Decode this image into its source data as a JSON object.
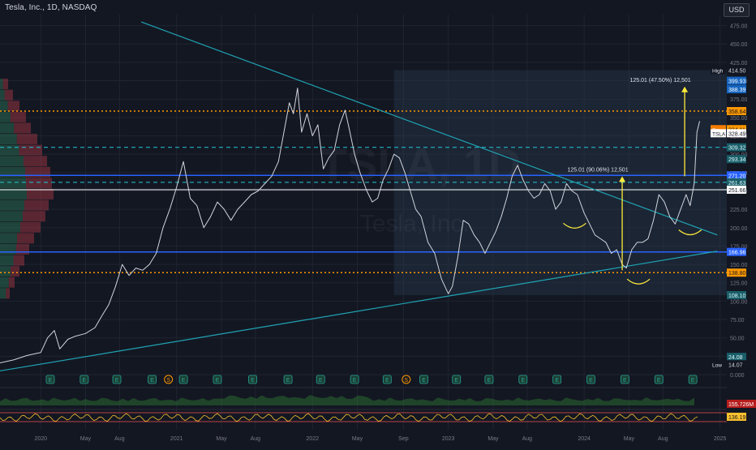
{
  "header": {
    "title": "Tesla, Inc., 1D, NASDAQ",
    "currency": "USD",
    "watermark_symbol": "TSLA, 1D",
    "watermark_name": "Tesla, Inc."
  },
  "colors": {
    "background": "#131722",
    "price_line": "#d1d4dc",
    "trendline": "#1fa4b4",
    "support_blue": "#2962ff",
    "orange_dotted": "#ff9800",
    "cyan_dashed": "#26c6da",
    "white_line": "#ffffff",
    "arrow_yellow": "#ffeb3b",
    "grid": "#1f2430",
    "axis_text": "#787b86"
  },
  "chart_data": {
    "type": "line",
    "title": "Tesla, Inc., 1D, NASDAQ",
    "ylim": [
      0,
      490
    ],
    "grid": true,
    "y_ticks": [
      0.0,
      25.0,
      50.0,
      75.0,
      100.0,
      125.0,
      150.0,
      175.0,
      200.0,
      225.0,
      250.0,
      275.0,
      300.0,
      325.0,
      350.0,
      375.0,
      400.0,
      425.0,
      450.0,
      475.0
    ],
    "y_tick_labels": [
      "0.000",
      "25.00",
      "50.00",
      "75.00",
      "100.00",
      "125.00",
      "150.00",
      "175.00",
      "200.00",
      "225.00",
      "250.00",
      "275.00",
      "300.00",
      "325.00",
      "350.00",
      "375.00",
      "400.00",
      "425.00",
      "450.00",
      "475.00"
    ],
    "x_ticks": [
      {
        "t": 2020.0,
        "label": "2020"
      },
      {
        "t": 2020.33,
        "label": "May"
      },
      {
        "t": 2020.58,
        "label": "Aug"
      },
      {
        "t": 2021.0,
        "label": "2021"
      },
      {
        "t": 2021.33,
        "label": "May"
      },
      {
        "t": 2021.58,
        "label": "Aug"
      },
      {
        "t": 2022.0,
        "label": "2022"
      },
      {
        "t": 2022.33,
        "label": "May"
      },
      {
        "t": 2022.67,
        "label": "Sep"
      },
      {
        "t": 2023.0,
        "label": "2023"
      },
      {
        "t": 2023.33,
        "label": "May"
      },
      {
        "t": 2023.58,
        "label": "Aug"
      },
      {
        "t": 2024.0,
        "label": "2024"
      },
      {
        "t": 2024.33,
        "label": "May"
      },
      {
        "t": 2024.58,
        "label": "Aug"
      },
      {
        "t": 2025.0,
        "label": "2025"
      }
    ],
    "series": [
      {
        "t": [
          2019.7,
          2019.8,
          2019.9,
          2020.0,
          2020.05,
          2020.1,
          2020.14,
          2020.2,
          2020.25,
          2020.33,
          2020.4,
          2020.45,
          2020.5,
          2020.55,
          2020.6,
          2020.65,
          2020.7,
          2020.75,
          2020.8,
          2020.85,
          2020.9,
          2020.95,
          2021.0,
          2021.05,
          2021.1,
          2021.15,
          2021.2,
          2021.25,
          2021.3,
          2021.35,
          2021.4,
          2021.45,
          2021.5,
          2021.55,
          2021.6,
          2021.65,
          2021.7,
          2021.75,
          2021.8,
          2021.83,
          2021.86,
          2021.89,
          2021.92,
          2021.96,
          2022.0,
          2022.04,
          2022.08,
          2022.12,
          2022.16,
          2022.2,
          2022.24,
          2022.27,
          2022.31,
          2022.35,
          2022.4,
          2022.44,
          2022.48,
          2022.52,
          2022.56,
          2022.6,
          2022.64,
          2022.68,
          2022.72,
          2022.76,
          2022.8,
          2022.85,
          2022.9,
          2022.95,
          2023.0,
          2023.03,
          2023.07,
          2023.11,
          2023.15,
          2023.19,
          2023.23,
          2023.27,
          2023.31,
          2023.35,
          2023.39,
          2023.43,
          2023.47,
          2023.51,
          2023.55,
          2023.59,
          2023.63,
          2023.67,
          2023.71,
          2023.75,
          2023.79,
          2023.83,
          2023.87,
          2023.91,
          2023.95,
          2024.0,
          2024.04,
          2024.08,
          2024.12,
          2024.16,
          2024.2,
          2024.24,
          2024.28,
          2024.31,
          2024.35,
          2024.39,
          2024.43,
          2024.47,
          2024.51,
          2024.55,
          2024.59,
          2024.63,
          2024.67,
          2024.71,
          2024.75,
          2024.78,
          2024.81,
          2024.83,
          2024.85
        ],
        "y": [
          16,
          20,
          26,
          30,
          50,
          60,
          35,
          48,
          52,
          56,
          64,
          80,
          95,
          120,
          150,
          135,
          145,
          142,
          150,
          165,
          200,
          225,
          255,
          290,
          240,
          230,
          200,
          215,
          235,
          225,
          210,
          225,
          235,
          245,
          250,
          260,
          270,
          290,
          340,
          370,
          355,
          390,
          330,
          355,
          325,
          340,
          280,
          295,
          305,
          340,
          360,
          335,
          300,
          275,
          250,
          235,
          240,
          265,
          280,
          300,
          295,
          275,
          250,
          225,
          215,
          180,
          165,
          130,
          110,
          120,
          160,
          210,
          205,
          190,
          180,
          165,
          180,
          195,
          215,
          240,
          270,
          285,
          265,
          250,
          240,
          245,
          260,
          250,
          225,
          235,
          260,
          250,
          245,
          220,
          205,
          190,
          185,
          180,
          165,
          170,
          150,
          145,
          170,
          180,
          180,
          185,
          210,
          245,
          235,
          215,
          205,
          225,
          245,
          230,
          260,
          330,
          345
        ]
      }
    ],
    "levels": [
      {
        "value": 358.64,
        "label": "358.64",
        "style": "orange-dotted"
      },
      {
        "value": 309.32,
        "label": "309.32",
        "style": "cyan-dashed"
      },
      {
        "value": 271.2,
        "label": "271.20",
        "style": "blue-solid"
      },
      {
        "value": 261.63,
        "label": "261.63",
        "style": "cyan-dashed"
      },
      {
        "value": 251.66,
        "label": "251.66",
        "style": "white-solid"
      },
      {
        "value": 166.96,
        "label": "166.96",
        "style": "blue-solid"
      },
      {
        "value": 138.8,
        "label": "138.80",
        "style": "orange-dotted"
      }
    ],
    "price_tags": [
      {
        "value": 414.5,
        "label": "414.50",
        "tag": "High"
      },
      {
        "value": 399.93,
        "label": "399.93"
      },
      {
        "value": 388.39,
        "label": "388.39"
      },
      {
        "value": 334.11,
        "label": "334.11",
        "tag": "Pre"
      },
      {
        "value": 328.49,
        "label": "328.49",
        "tag": "TSLA"
      },
      {
        "value": 293.34,
        "label": "293.34"
      },
      {
        "value": 108.1,
        "label": "108.10"
      },
      {
        "value": 24.08,
        "label": "24.08"
      },
      {
        "value": 14.07,
        "label": "14.07",
        "tag": "Low"
      }
    ],
    "trendlines": [
      {
        "t1": 2020.74,
        "y1": 480,
        "t2": 2024.98,
        "y2": 190
      },
      {
        "t1": 2019.7,
        "y1": 5,
        "t2": 2024.98,
        "y2": 168
      }
    ],
    "measurements": [
      {
        "t": 2024.28,
        "from": 142.0,
        "to": 270.0,
        "label": "125.01 (90.06%) 12,501"
      },
      {
        "t": 2024.74,
        "from": 270.0,
        "to": 392.0,
        "label": "125.01 (47.50%) 12,501"
      }
    ],
    "pattern_arcs": [
      {
        "t": 2023.93,
        "y": 206
      },
      {
        "t": 2024.4,
        "y": 130
      },
      {
        "t": 2024.78,
        "y": 197
      }
    ],
    "volume_profile_rows": [
      {
        "y": 395,
        "len": 10,
        "up": 0.35
      },
      {
        "y": 380,
        "len": 16,
        "up": 0.35
      },
      {
        "y": 365,
        "len": 24,
        "up": 0.4
      },
      {
        "y": 350,
        "len": 32,
        "up": 0.4
      },
      {
        "y": 335,
        "len": 38,
        "up": 0.45
      },
      {
        "y": 320,
        "len": 46,
        "up": 0.45
      },
      {
        "y": 305,
        "len": 52,
        "up": 0.45
      },
      {
        "y": 290,
        "len": 58,
        "up": 0.5
      },
      {
        "y": 275,
        "len": 62,
        "up": 0.5
      },
      {
        "y": 260,
        "len": 64,
        "up": 0.5
      },
      {
        "y": 245,
        "len": 66,
        "up": 0.5
      },
      {
        "y": 230,
        "len": 60,
        "up": 0.5
      },
      {
        "y": 215,
        "len": 56,
        "up": 0.5
      },
      {
        "y": 200,
        "len": 50,
        "up": 0.5
      },
      {
        "y": 185,
        "len": 42,
        "up": 0.5
      },
      {
        "y": 170,
        "len": 36,
        "up": 0.55
      },
      {
        "y": 155,
        "len": 30,
        "up": 0.55
      },
      {
        "y": 140,
        "len": 24,
        "up": 0.55
      },
      {
        "y": 125,
        "len": 18,
        "up": 0.6
      },
      {
        "y": 110,
        "len": 12,
        "up": 0.6
      }
    ],
    "events": [
      {
        "t": 2020.07,
        "icon": "E"
      },
      {
        "t": 2020.32,
        "icon": "E"
      },
      {
        "t": 2020.56,
        "icon": "E"
      },
      {
        "t": 2020.82,
        "icon": "E"
      },
      {
        "t": 2020.94,
        "icon": "S"
      },
      {
        "t": 2021.05,
        "icon": "E"
      },
      {
        "t": 2021.3,
        "icon": "E"
      },
      {
        "t": 2021.56,
        "icon": "E"
      },
      {
        "t": 2021.82,
        "icon": "E"
      },
      {
        "t": 2022.06,
        "icon": "E"
      },
      {
        "t": 2022.31,
        "icon": "E"
      },
      {
        "t": 2022.55,
        "icon": "E"
      },
      {
        "t": 2022.69,
        "icon": "S"
      },
      {
        "t": 2022.82,
        "icon": "E"
      },
      {
        "t": 2023.06,
        "icon": "E"
      },
      {
        "t": 2023.3,
        "icon": "E"
      },
      {
        "t": 2023.55,
        "icon": "E"
      },
      {
        "t": 2023.8,
        "icon": "E"
      },
      {
        "t": 2024.05,
        "icon": "E"
      },
      {
        "t": 2024.3,
        "icon": "E"
      },
      {
        "t": 2024.55,
        "icon": "E"
      },
      {
        "t": 2024.8,
        "icon": "E"
      }
    ],
    "volume_label": "155.726M",
    "oscillator_label": "136.19"
  }
}
